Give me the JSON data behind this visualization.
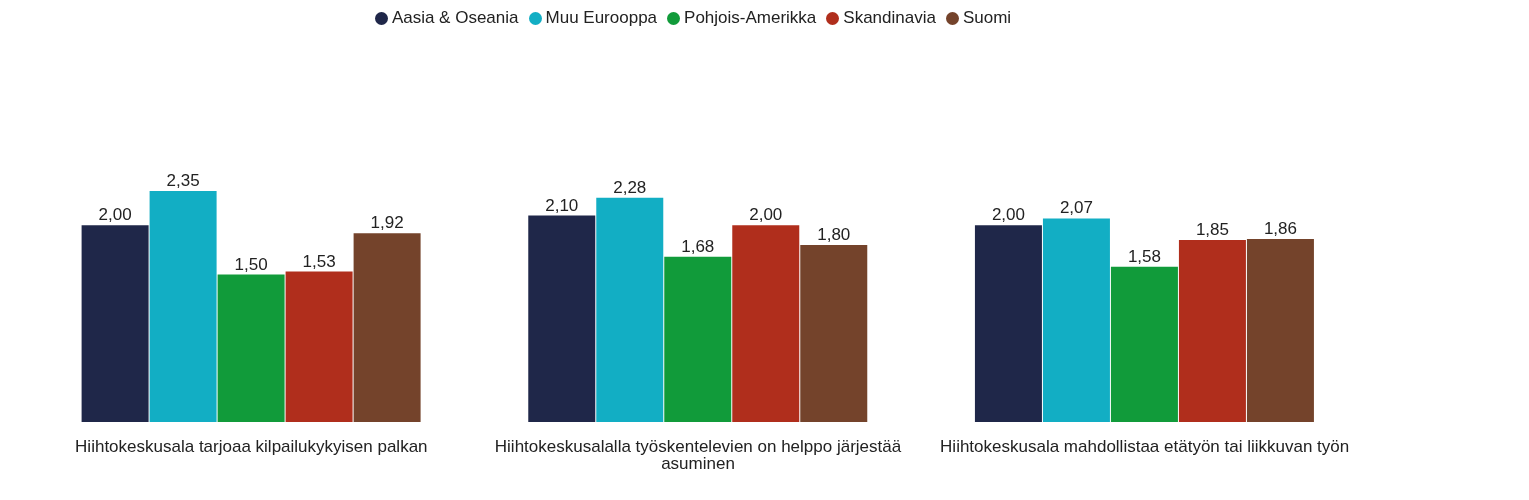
{
  "chart_data": {
    "type": "bar",
    "categories": [
      "Hiihtokeskusala tarjoaa kilpailukykyisen palkan",
      "Hiihtokeskusalalla työskentelevien on helppo järjestää asuminen",
      "Hiihtokeskusala mahdollistaa etätyön tai liikkuvan työn"
    ],
    "series": [
      {
        "name": "Aasia & Oseania",
        "color": "#1f2749",
        "values": [
          2.0,
          2.1,
          2.0
        ],
        "value_labels": [
          "2,00",
          "2,10",
          "2,00"
        ]
      },
      {
        "name": "Muu Eurooppa",
        "color": "#12aec4",
        "values": [
          2.35,
          2.28,
          2.07
        ],
        "value_labels": [
          "2,35",
          "2,28",
          "2,07"
        ]
      },
      {
        "name": "Pohjois-Amerikka",
        "color": "#119b3a",
        "values": [
          1.5,
          1.68,
          1.58
        ],
        "value_labels": [
          "1,50",
          "1,68",
          "1,58"
        ]
      },
      {
        "name": "Skandinavia",
        "color": "#b02e1c",
        "values": [
          1.53,
          2.0,
          1.85
        ],
        "value_labels": [
          "1,53",
          "2,00",
          "1,85"
        ]
      },
      {
        "name": "Suomi",
        "color": "#74432b",
        "values": [
          1.92,
          1.8,
          1.86
        ],
        "value_labels": [
          "1,92",
          "1,80",
          "1,86"
        ]
      }
    ],
    "tick_labels": "x",
    "legend": "top"
  }
}
